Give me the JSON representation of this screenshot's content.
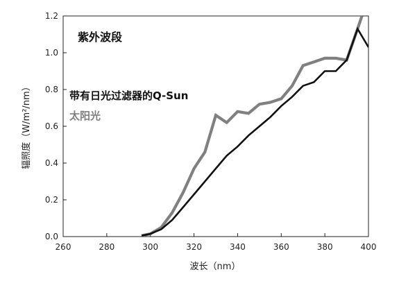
{
  "chart_data": {
    "type": "line",
    "title": "",
    "annotation": "紫外波段",
    "xlabel": "波长（nm）",
    "ylabel": "辐照度（W/m²/nm）",
    "xlim": [
      260,
      400
    ],
    "ylim": [
      0.0,
      1.2
    ],
    "x_ticks": [
      "260",
      "280",
      "300",
      "320",
      "340",
      "360",
      "380",
      "400"
    ],
    "y_ticks": [
      "0.0",
      "0.2",
      "0.4",
      "0.6",
      "0.8",
      "1.0",
      "1.2"
    ],
    "grid": false,
    "legend_position": "middle-left",
    "series": [
      {
        "name": "带有日光过滤器的Q-Sun",
        "color": "#111111",
        "x": [
          296,
          300,
          305,
          310,
          315,
          320,
          325,
          330,
          335,
          340,
          345,
          350,
          355,
          360,
          365,
          370,
          375,
          380,
          385,
          390,
          395,
          400
        ],
        "y": [
          0.005,
          0.015,
          0.04,
          0.09,
          0.16,
          0.23,
          0.3,
          0.37,
          0.44,
          0.49,
          0.55,
          0.6,
          0.65,
          0.71,
          0.76,
          0.82,
          0.84,
          0.9,
          0.9,
          0.96,
          1.13,
          1.03
        ]
      },
      {
        "name": "太阳光",
        "color": "#808080",
        "x": [
          296,
          300,
          305,
          310,
          315,
          320,
          325,
          330,
          335,
          340,
          345,
          350,
          355,
          360,
          365,
          370,
          375,
          380,
          385,
          390,
          395,
          397
        ],
        "y": [
          0.005,
          0.015,
          0.05,
          0.13,
          0.24,
          0.37,
          0.46,
          0.66,
          0.62,
          0.68,
          0.67,
          0.72,
          0.73,
          0.75,
          0.82,
          0.93,
          0.95,
          0.97,
          0.97,
          0.96,
          1.13,
          1.2
        ]
      }
    ]
  }
}
